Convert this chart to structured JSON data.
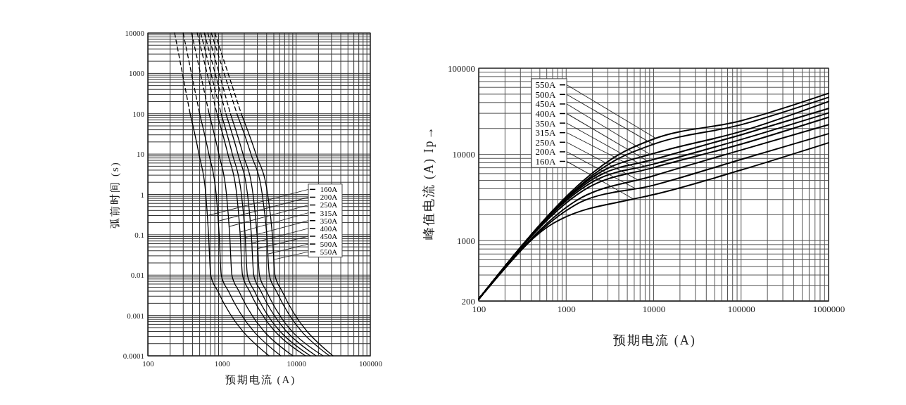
{
  "chart_data": [
    {
      "type": "line",
      "xlabel": "预期电流 (A)",
      "ylabel": "弧前时间 (s)",
      "log": "xy",
      "legend": "right",
      "xlim": [
        100,
        100000
      ],
      "xticks": [
        100,
        1000,
        10000,
        100000
      ],
      "ylim": [
        0.0001,
        10000
      ],
      "yticks": [
        0.0001,
        0.001,
        0.01,
        0.1,
        1,
        10,
        100,
        1000,
        10000
      ],
      "grid": true,
      "series": [
        {
          "color": "#000000",
          "line_style": "dashed",
          "x": [
            230,
            372
          ],
          "values": [
            10000,
            100
          ]
        },
        {
          "color": "#000000",
          "line_style": "dashed",
          "x": [
            300,
            500
          ],
          "values": [
            10000,
            100
          ]
        },
        {
          "color": "#000000",
          "line_style": "dashed",
          "x": [
            390,
            671
          ],
          "values": [
            10000,
            100
          ]
        },
        {
          "color": "#000000",
          "line_style": "dashed",
          "x": [
            464,
            856
          ],
          "values": [
            10000,
            100
          ]
        },
        {
          "color": "#000000",
          "line_style": "dashed",
          "x": [
            518,
            974
          ],
          "values": [
            10000,
            100
          ]
        },
        {
          "color": "#000000",
          "line_style": "dashed",
          "x": [
            578,
            1130
          ],
          "values": [
            10000,
            100
          ]
        },
        {
          "color": "#000000",
          "line_style": "dashed",
          "x": [
            645,
            1300
          ],
          "values": [
            10000,
            100
          ]
        },
        {
          "color": "#000000",
          "line_style": "dashed",
          "x": [
            720,
            1590
          ],
          "values": [
            10000,
            100
          ]
        },
        {
          "color": "#000000",
          "line_style": "dashed",
          "x": [
            803,
            1820
          ],
          "values": [
            10000,
            100
          ]
        },
        {
          "name": "160A",
          "color": "#000000",
          "x": [
            372,
            489,
            605,
            659,
            704,
            877,
            4300
          ],
          "values": [
            100,
            10,
            1,
            0.1,
            0.01,
            0.004,
            0.0001
          ]
        },
        {
          "name": "200A",
          "color": "#000000",
          "x": [
            500,
            665,
            835,
            916,
            978,
            1220,
            6200
          ],
          "values": [
            100,
            10,
            1,
            0.1,
            0.01,
            0.004,
            0.0001
          ]
        },
        {
          "name": "250A",
          "color": "#000000",
          "x": [
            671,
            906,
            1150,
            1270,
            1360,
            1690,
            9000
          ],
          "values": [
            100,
            10,
            1,
            0.1,
            0.01,
            0.004,
            0.0001
          ]
        },
        {
          "name": "315A",
          "color": "#000000",
          "x": [
            856,
            1200,
            1580,
            1760,
            1890,
            2350,
            13300
          ],
          "values": [
            100,
            10,
            1,
            0.1,
            0.01,
            0.004,
            0.0001
          ]
        },
        {
          "name": "350A",
          "color": "#000000",
          "x": [
            974,
            1380,
            1830,
            2050,
            2200,
            2740,
            15500
          ],
          "values": [
            100,
            10,
            1,
            0.1,
            0.01,
            0.004,
            0.0001
          ]
        },
        {
          "name": "400A",
          "color": "#000000",
          "x": [
            1130,
            1640,
            2210,
            2490,
            2680,
            3340,
            18500
          ],
          "values": [
            100,
            10,
            1,
            0.1,
            0.01,
            0.004,
            0.0001
          ]
        },
        {
          "name": "450A",
          "color": "#000000",
          "x": [
            1300,
            1920,
            2620,
            2970,
            3200,
            3980,
            23000
          ],
          "values": [
            100,
            10,
            1,
            0.1,
            0.01,
            0.004,
            0.0001
          ]
        },
        {
          "name": "500A",
          "color": "#000000",
          "x": [
            1590,
            2460,
            3490,
            4020,
            4350,
            5410,
            28000
          ],
          "values": [
            100,
            10,
            1,
            0.1,
            0.01,
            0.004,
            0.0001
          ]
        },
        {
          "name": "550A",
          "color": "#000000",
          "x": [
            1820,
            2870,
            4130,
            4780,
            5180,
            6450,
            31300
          ],
          "values": [
            100,
            10,
            1,
            0.1,
            0.01,
            0.004,
            0.0001
          ]
        }
      ]
    },
    {
      "type": "line",
      "xlabel": "预期电流 (A)",
      "ylabel": "峰值电流 (A)   Ip→",
      "log": "xy",
      "legend": "top left",
      "xlim": [
        100,
        1000000
      ],
      "xticks": [
        100,
        1000,
        10000,
        100000,
        1000000
      ],
      "ylim": [
        200,
        100000
      ],
      "yticks": [
        200,
        1000,
        10000,
        100000
      ],
      "grid": true,
      "series": [
        {
          "name": "160A",
          "color": "#000000",
          "x": [
            100,
            721,
            868,
            5890,
            10000,
            100000,
            1000000
          ],
          "values": [
            210,
            1600,
            1770,
            3040,
            3420,
            6600,
            13650
          ]
        },
        {
          "name": "200A",
          "color": "#000000",
          "x": [
            100,
            982,
            1510,
            10000,
            100000,
            1000000
          ],
          "values": [
            210,
            2200,
            2840,
            4400,
            8750,
            17400
          ]
        },
        {
          "name": "250A",
          "color": "#000000",
          "x": [
            100,
            1260,
            10000,
            100000,
            1000000
          ],
          "values": [
            210,
            2850,
            5650,
            11250,
            22100
          ]
        },
        {
          "name": "315A",
          "color": "#000000",
          "x": [
            100,
            1820,
            10000,
            100000,
            1000000
          ],
          "values": [
            210,
            4170,
            7030,
            13150,
            27000
          ]
        },
        {
          "name": "350A",
          "color": "#000000",
          "x": [
            100,
            2190,
            10000,
            100000,
            1000000
          ],
          "values": [
            210,
            5040,
            7730,
            14900,
            30300
          ]
        },
        {
          "name": "400A",
          "color": "#000000",
          "x": [
            100,
            2560,
            10000,
            100000,
            1000000
          ],
          "values": [
            210,
            5900,
            8750,
            16900,
            34100
          ]
        },
        {
          "name": "450A",
          "color": "#000000",
          "x": [
            100,
            2990,
            10000,
            100000,
            1000000
          ],
          "values": [
            210,
            6920,
            10250,
            18500,
            41100
          ]
        },
        {
          "name": "500A",
          "color": "#000000",
          "x": [
            100,
            3710,
            10000,
            100000,
            1000000
          ],
          "values": [
            210,
            8650,
            13150,
            22100,
            46000
          ]
        },
        {
          "name": "550A",
          "color": "#000000",
          "x": [
            100,
            4600,
            10000,
            100000,
            1000000
          ],
          "values": [
            210,
            10800,
            15100,
            24600,
            51200
          ]
        }
      ]
    }
  ]
}
